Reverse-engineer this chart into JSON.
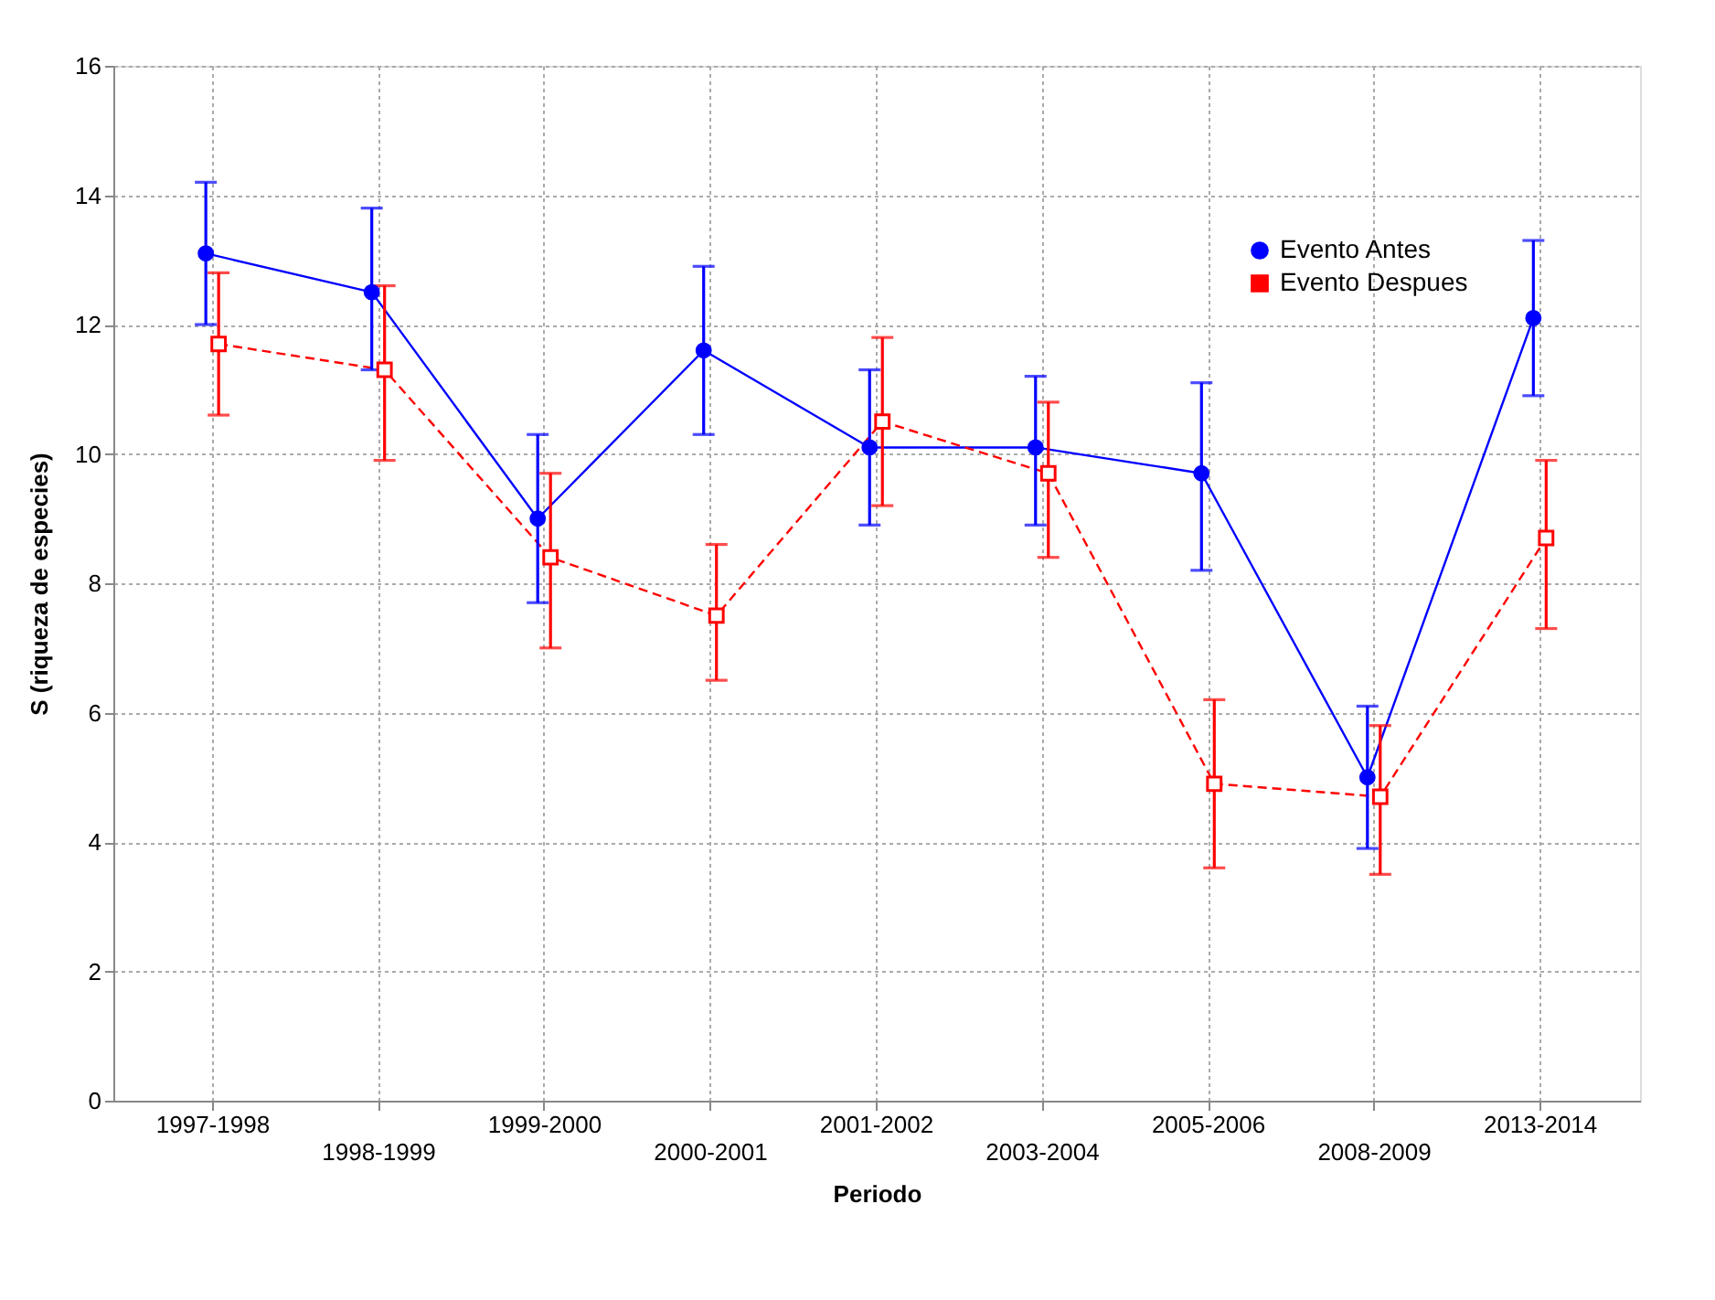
{
  "chart_data": {
    "type": "line",
    "xlabel": "Periodo",
    "ylabel": "S (riqueza de especies)",
    "categories": [
      "1997-1998",
      "1998-1999",
      "1999-2000",
      "2000-2001",
      "2001-2002",
      "2003-2004",
      "2005-2006",
      "2008-2009",
      "2013-2014"
    ],
    "series": [
      {
        "name": "Evento Antes",
        "color": "#0000ff",
        "marker": "circle",
        "line_style": "solid",
        "values": [
          13.1,
          12.5,
          9.0,
          11.6,
          10.1,
          10.1,
          9.7,
          5.0,
          12.1
        ],
        "errors": [
          [
            12.0,
            14.2
          ],
          [
            11.3,
            13.8
          ],
          [
            7.7,
            10.3
          ],
          [
            10.3,
            12.9
          ],
          [
            8.9,
            11.3
          ],
          [
            8.9,
            11.2
          ],
          [
            8.2,
            11.1
          ],
          [
            3.9,
            6.1
          ],
          [
            10.9,
            13.3
          ]
        ]
      },
      {
        "name": "Evento Despues",
        "color": "#ff0000",
        "marker": "square",
        "line_style": "dashed",
        "values": [
          11.7,
          11.3,
          8.4,
          7.5,
          10.5,
          9.7,
          4.9,
          4.7,
          8.7
        ],
        "errors": [
          [
            10.6,
            12.8
          ],
          [
            9.9,
            12.6
          ],
          [
            7.0,
            9.7
          ],
          [
            6.5,
            8.6
          ],
          [
            9.2,
            11.8
          ],
          [
            8.4,
            10.8
          ],
          [
            3.6,
            6.2
          ],
          [
            3.5,
            5.8
          ],
          [
            7.3,
            9.9
          ]
        ]
      }
    ],
    "ylim": [
      0,
      16
    ],
    "yticks": [
      0,
      2,
      4,
      6,
      8,
      10,
      12,
      14,
      16
    ],
    "grid": true,
    "legend": "top right"
  }
}
